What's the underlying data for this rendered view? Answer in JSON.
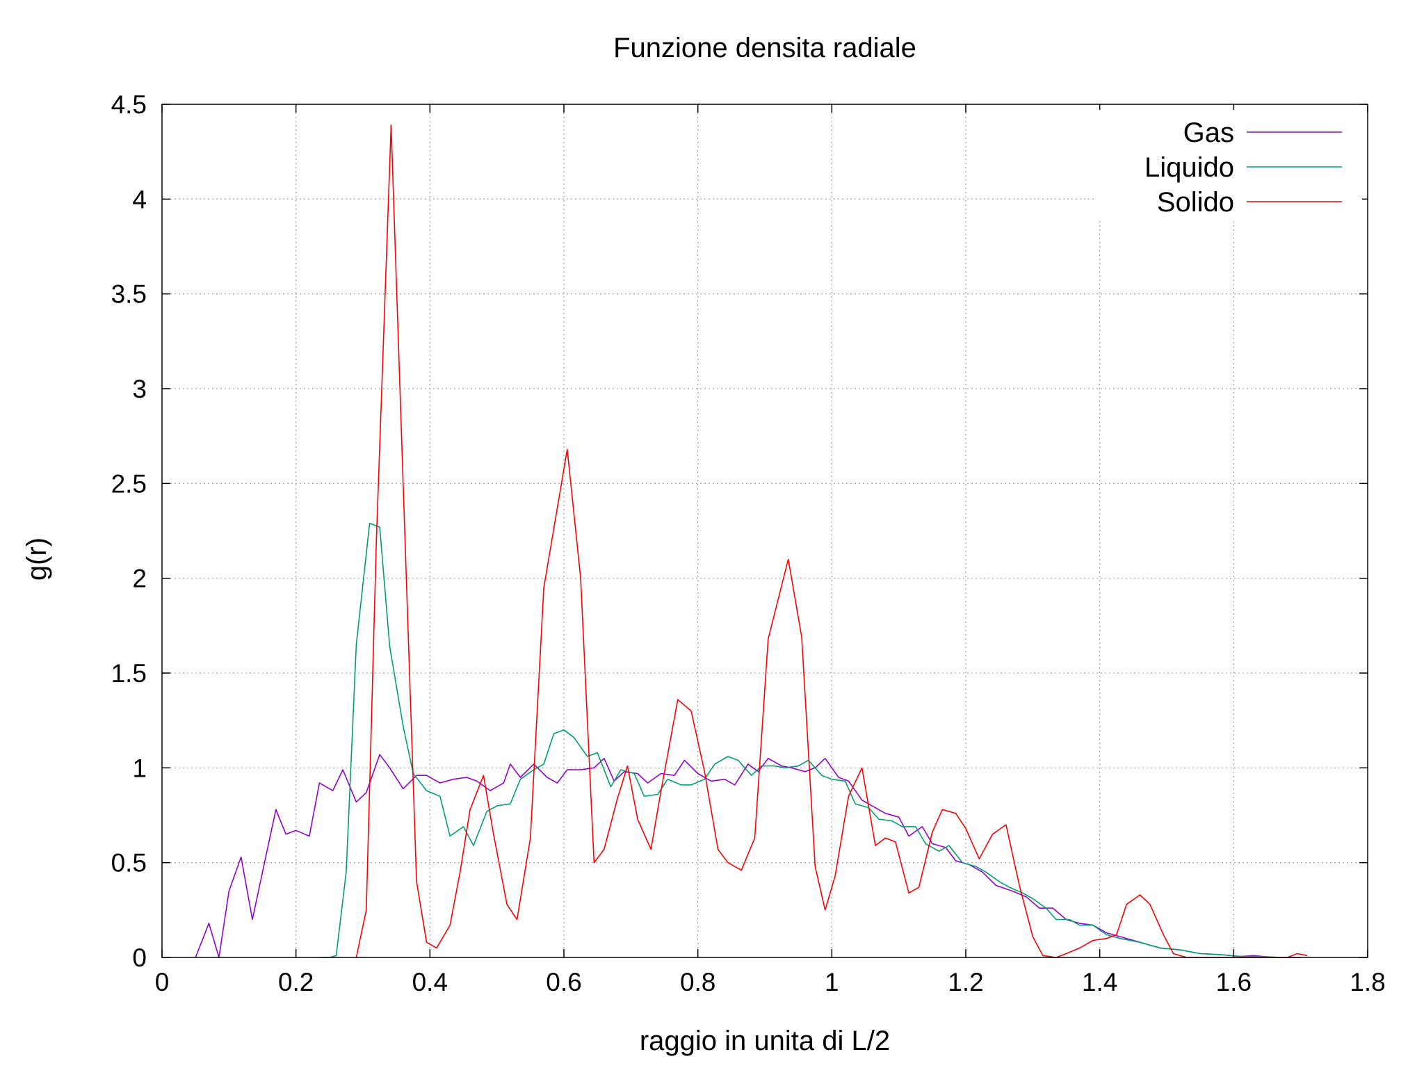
{
  "chart_data": {
    "type": "line",
    "title": "Funzione densita radiale",
    "xlabel": "raggio in unita di L/2",
    "ylabel": "g(r)",
    "xlim": [
      0,
      1.8
    ],
    "ylim": [
      0,
      4.5
    ],
    "xticks": [
      0,
      0.2,
      0.4,
      0.6,
      0.8,
      1.0,
      1.2,
      1.4,
      1.6,
      1.8
    ],
    "xtick_labels": [
      "0",
      "0.2",
      "0.4",
      "0.6",
      "0.8",
      "1",
      "1.2",
      "1.4",
      "1.6",
      "1.8"
    ],
    "yticks": [
      0,
      0.5,
      1.0,
      1.5,
      2.0,
      2.5,
      3.0,
      3.5,
      4.0,
      4.5
    ],
    "ytick_labels": [
      "0",
      "0.5",
      "1",
      "1.5",
      "2",
      "2.5",
      "3",
      "3.5",
      "4",
      "4.5"
    ],
    "grid": true,
    "legend_position": "top-right",
    "series": [
      {
        "name": "Gas",
        "color": "#9400d3",
        "points": [
          [
            0.05,
            0.0
          ],
          [
            0.07,
            0.18
          ],
          [
            0.085,
            0.0
          ],
          [
            0.1,
            0.35
          ],
          [
            0.118,
            0.53
          ],
          [
            0.135,
            0.2
          ],
          [
            0.15,
            0.45
          ],
          [
            0.17,
            0.78
          ],
          [
            0.185,
            0.65
          ],
          [
            0.2,
            0.67
          ],
          [
            0.22,
            0.64
          ],
          [
            0.235,
            0.92
          ],
          [
            0.255,
            0.88
          ],
          [
            0.27,
            0.99
          ],
          [
            0.29,
            0.82
          ],
          [
            0.305,
            0.87
          ],
          [
            0.325,
            1.07
          ],
          [
            0.34,
            1.0
          ],
          [
            0.36,
            0.89
          ],
          [
            0.38,
            0.96
          ],
          [
            0.395,
            0.96
          ],
          [
            0.415,
            0.92
          ],
          [
            0.435,
            0.94
          ],
          [
            0.455,
            0.95
          ],
          [
            0.47,
            0.93
          ],
          [
            0.49,
            0.88
          ],
          [
            0.51,
            0.92
          ],
          [
            0.52,
            1.02
          ],
          [
            0.535,
            0.95
          ],
          [
            0.555,
            1.02
          ],
          [
            0.575,
            0.95
          ],
          [
            0.59,
            0.92
          ],
          [
            0.605,
            0.99
          ],
          [
            0.625,
            0.99
          ],
          [
            0.645,
            1.0
          ],
          [
            0.66,
            1.05
          ],
          [
            0.675,
            0.93
          ],
          [
            0.69,
            0.98
          ],
          [
            0.71,
            0.97
          ],
          [
            0.725,
            0.92
          ],
          [
            0.745,
            0.97
          ],
          [
            0.765,
            0.96
          ],
          [
            0.78,
            1.04
          ],
          [
            0.8,
            0.97
          ],
          [
            0.82,
            0.93
          ],
          [
            0.84,
            0.94
          ],
          [
            0.855,
            0.91
          ],
          [
            0.875,
            1.02
          ],
          [
            0.89,
            0.98
          ],
          [
            0.905,
            1.05
          ],
          [
            0.925,
            1.01
          ],
          [
            0.94,
            1.0
          ],
          [
            0.96,
            0.98
          ],
          [
            0.975,
            1.0
          ],
          [
            0.99,
            1.05
          ],
          [
            1.01,
            0.95
          ],
          [
            1.025,
            0.93
          ],
          [
            1.045,
            0.83
          ],
          [
            1.06,
            0.8
          ],
          [
            1.08,
            0.76
          ],
          [
            1.1,
            0.74
          ],
          [
            1.115,
            0.64
          ],
          [
            1.135,
            0.69
          ],
          [
            1.15,
            0.6
          ],
          [
            1.17,
            0.58
          ],
          [
            1.185,
            0.51
          ],
          [
            1.205,
            0.49
          ],
          [
            1.225,
            0.45
          ],
          [
            1.245,
            0.38
          ],
          [
            1.27,
            0.35
          ],
          [
            1.29,
            0.32
          ],
          [
            1.31,
            0.26
          ],
          [
            1.33,
            0.26
          ],
          [
            1.35,
            0.2
          ],
          [
            1.37,
            0.18
          ],
          [
            1.39,
            0.17
          ],
          [
            1.41,
            0.13
          ],
          [
            1.43,
            0.11
          ],
          [
            1.46,
            0.08
          ],
          [
            1.49,
            0.05
          ],
          [
            1.52,
            0.04
          ],
          [
            1.55,
            0.02
          ],
          [
            1.58,
            0.015
          ],
          [
            1.61,
            0.005
          ],
          [
            1.63,
            0.01
          ],
          [
            1.66,
            0.0
          ],
          [
            1.7,
            0.0
          ]
        ]
      },
      {
        "name": "Liquido",
        "color": "#009e73",
        "points": [
          [
            0.235,
            0.0
          ],
          [
            0.25,
            0.0
          ],
          [
            0.26,
            0.01
          ],
          [
            0.275,
            0.45
          ],
          [
            0.29,
            1.65
          ],
          [
            0.31,
            2.29
          ],
          [
            0.325,
            2.27
          ],
          [
            0.34,
            1.64
          ],
          [
            0.36,
            1.22
          ],
          [
            0.375,
            0.97
          ],
          [
            0.395,
            0.88
          ],
          [
            0.415,
            0.85
          ],
          [
            0.43,
            0.64
          ],
          [
            0.45,
            0.69
          ],
          [
            0.465,
            0.59
          ],
          [
            0.485,
            0.77
          ],
          [
            0.5,
            0.8
          ],
          [
            0.52,
            0.81
          ],
          [
            0.535,
            0.94
          ],
          [
            0.555,
            0.99
          ],
          [
            0.57,
            1.02
          ],
          [
            0.585,
            1.18
          ],
          [
            0.6,
            1.2
          ],
          [
            0.615,
            1.16
          ],
          [
            0.635,
            1.06
          ],
          [
            0.65,
            1.08
          ],
          [
            0.67,
            0.9
          ],
          [
            0.685,
            0.99
          ],
          [
            0.705,
            0.97
          ],
          [
            0.72,
            0.85
          ],
          [
            0.74,
            0.86
          ],
          [
            0.755,
            0.94
          ],
          [
            0.775,
            0.91
          ],
          [
            0.79,
            0.91
          ],
          [
            0.81,
            0.94
          ],
          [
            0.825,
            1.02
          ],
          [
            0.845,
            1.06
          ],
          [
            0.86,
            1.04
          ],
          [
            0.88,
            0.96
          ],
          [
            0.895,
            1.01
          ],
          [
            0.915,
            1.01
          ],
          [
            0.93,
            1.0
          ],
          [
            0.95,
            1.01
          ],
          [
            0.965,
            1.04
          ],
          [
            0.985,
            0.96
          ],
          [
            1.0,
            0.94
          ],
          [
            1.02,
            0.93
          ],
          [
            1.035,
            0.81
          ],
          [
            1.055,
            0.79
          ],
          [
            1.07,
            0.73
          ],
          [
            1.09,
            0.72
          ],
          [
            1.105,
            0.69
          ],
          [
            1.125,
            0.69
          ],
          [
            1.14,
            0.6
          ],
          [
            1.16,
            0.56
          ],
          [
            1.175,
            0.59
          ],
          [
            1.195,
            0.5
          ],
          [
            1.215,
            0.48
          ],
          [
            1.23,
            0.45
          ],
          [
            1.25,
            0.4
          ],
          [
            1.265,
            0.37
          ],
          [
            1.285,
            0.34
          ],
          [
            1.3,
            0.31
          ],
          [
            1.32,
            0.26
          ],
          [
            1.335,
            0.2
          ],
          [
            1.355,
            0.2
          ],
          [
            1.37,
            0.17
          ],
          [
            1.39,
            0.17
          ],
          [
            1.41,
            0.12
          ],
          [
            1.43,
            0.1
          ],
          [
            1.46,
            0.08
          ],
          [
            1.49,
            0.05
          ],
          [
            1.52,
            0.04
          ],
          [
            1.55,
            0.02
          ],
          [
            1.58,
            0.015
          ],
          [
            1.61,
            0.005
          ],
          [
            1.64,
            0.005
          ],
          [
            1.67,
            0.0
          ]
        ]
      },
      {
        "name": "Solido",
        "color": "#ff0000",
        "points": [
          [
            0.29,
            0.0
          ],
          [
            0.305,
            0.25
          ],
          [
            0.32,
            2.2
          ],
          [
            0.342,
            4.39
          ],
          [
            0.36,
            2.5
          ],
          [
            0.38,
            0.4
          ],
          [
            0.395,
            0.08
          ],
          [
            0.41,
            0.05
          ],
          [
            0.43,
            0.17
          ],
          [
            0.445,
            0.45
          ],
          [
            0.46,
            0.78
          ],
          [
            0.48,
            0.96
          ],
          [
            0.495,
            0.65
          ],
          [
            0.515,
            0.28
          ],
          [
            0.53,
            0.2
          ],
          [
            0.55,
            0.63
          ],
          [
            0.57,
            1.95
          ],
          [
            0.605,
            2.68
          ],
          [
            0.625,
            2.0
          ],
          [
            0.645,
            0.5
          ],
          [
            0.66,
            0.57
          ],
          [
            0.68,
            0.84
          ],
          [
            0.695,
            1.01
          ],
          [
            0.71,
            0.73
          ],
          [
            0.73,
            0.57
          ],
          [
            0.745,
            0.88
          ],
          [
            0.77,
            1.36
          ],
          [
            0.79,
            1.3
          ],
          [
            0.81,
            0.98
          ],
          [
            0.83,
            0.57
          ],
          [
            0.845,
            0.5
          ],
          [
            0.865,
            0.46
          ],
          [
            0.885,
            0.63
          ],
          [
            0.905,
            1.68
          ],
          [
            0.935,
            2.1
          ],
          [
            0.955,
            1.69
          ],
          [
            0.975,
            0.48
          ],
          [
            0.99,
            0.25
          ],
          [
            1.005,
            0.43
          ],
          [
            1.025,
            0.85
          ],
          [
            1.045,
            1.0
          ],
          [
            1.065,
            0.59
          ],
          [
            1.08,
            0.63
          ],
          [
            1.095,
            0.61
          ],
          [
            1.115,
            0.34
          ],
          [
            1.13,
            0.37
          ],
          [
            1.15,
            0.66
          ],
          [
            1.165,
            0.78
          ],
          [
            1.185,
            0.76
          ],
          [
            1.2,
            0.68
          ],
          [
            1.22,
            0.52
          ],
          [
            1.24,
            0.65
          ],
          [
            1.26,
            0.7
          ],
          [
            1.28,
            0.38
          ],
          [
            1.3,
            0.11
          ],
          [
            1.315,
            0.01
          ],
          [
            1.335,
            0.0
          ],
          [
            1.35,
            0.02
          ],
          [
            1.37,
            0.05
          ],
          [
            1.39,
            0.09
          ],
          [
            1.41,
            0.1
          ],
          [
            1.425,
            0.12
          ],
          [
            1.44,
            0.28
          ],
          [
            1.46,
            0.33
          ],
          [
            1.475,
            0.28
          ],
          [
            1.495,
            0.12
          ],
          [
            1.51,
            0.02
          ],
          [
            1.53,
            0.0
          ],
          [
            1.6,
            0.0
          ],
          [
            1.68,
            0.0
          ],
          [
            1.695,
            0.02
          ],
          [
            1.71,
            0.01
          ]
        ]
      }
    ]
  }
}
